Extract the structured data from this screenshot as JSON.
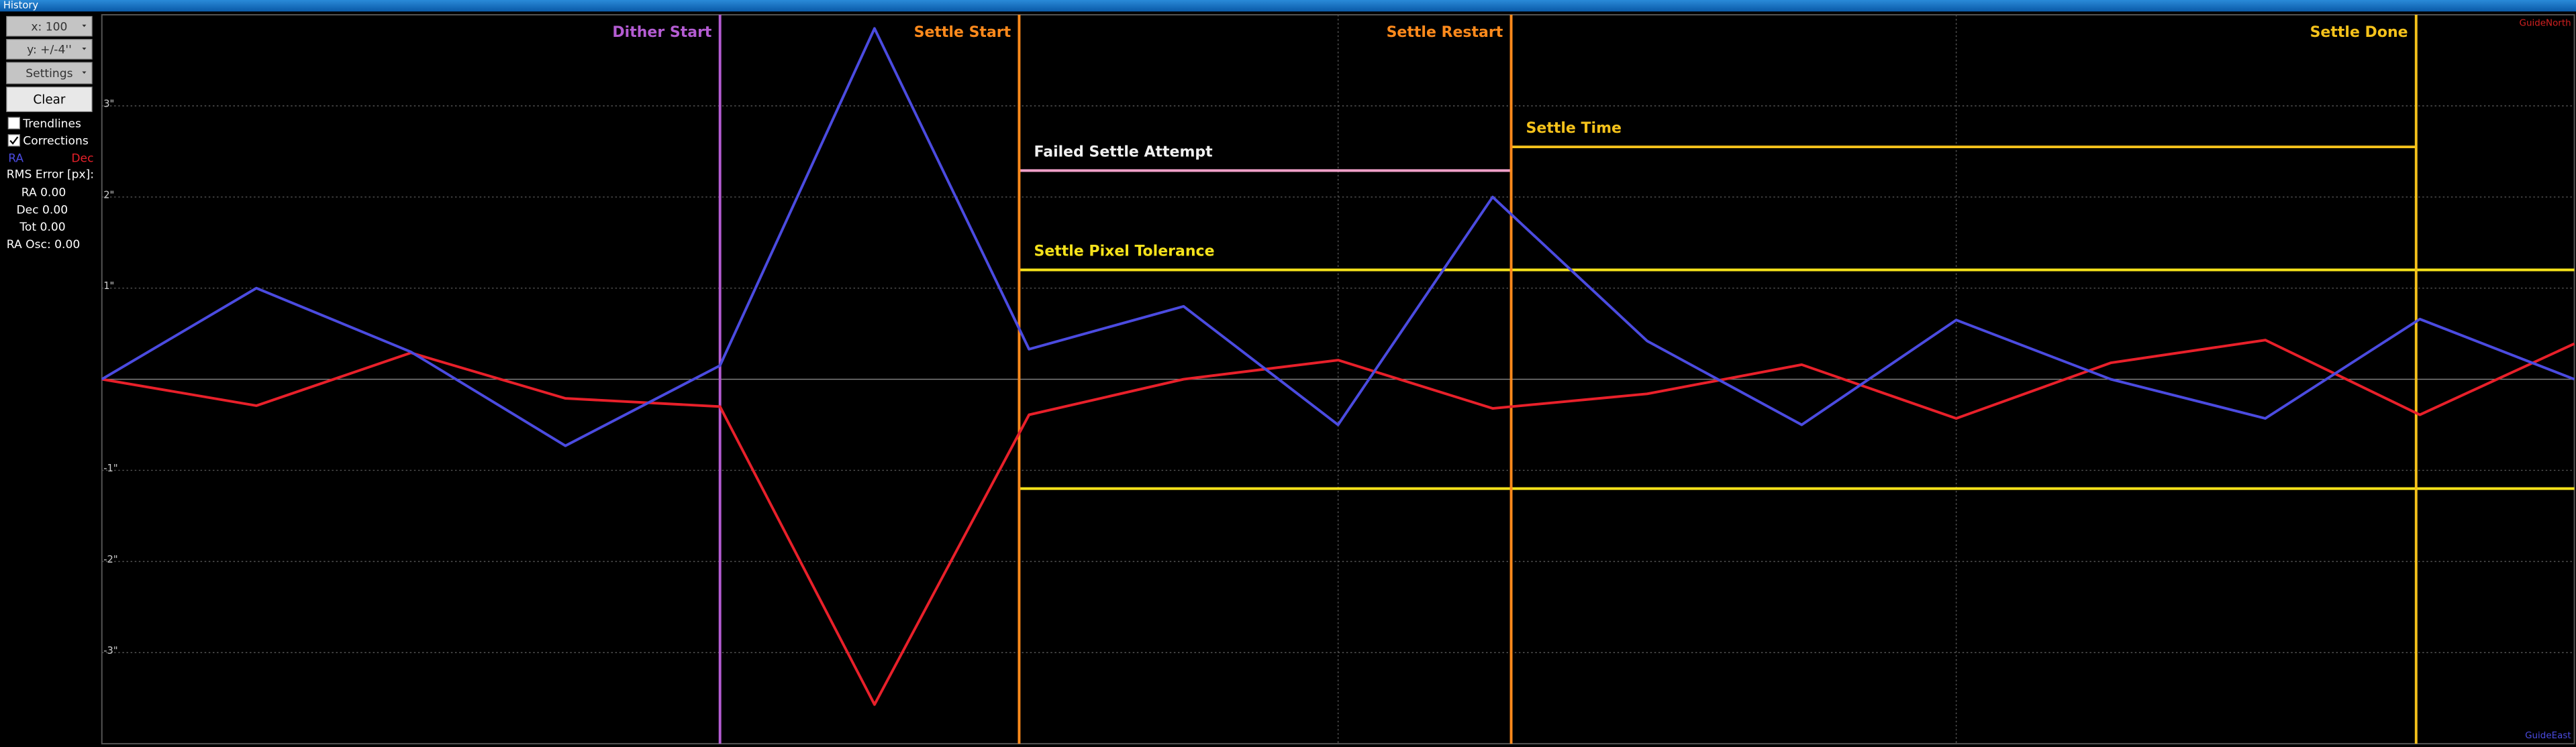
{
  "window_title": "History",
  "controls": {
    "x_scale": "x: 100",
    "y_scale": "y: +/-4''",
    "settings": "Settings",
    "clear": "Clear",
    "trendlines": {
      "label": "Trendlines",
      "checked": false
    },
    "corrections": {
      "label": "Corrections",
      "checked": true
    },
    "ra_legend": "RA",
    "dec_legend": "Dec",
    "rms_title": "RMS Error [px]:",
    "rms_ra": "RA 0.00",
    "rms_dec": "Dec 0.00",
    "rms_tot": "Tot 0.00",
    "ra_osc": "RA Osc: 0.00"
  },
  "chart_data": {
    "type": "line",
    "x": [
      0,
      6.25,
      12.5,
      18.75,
      25,
      31.25,
      37.5,
      43.75,
      50,
      56.25,
      62.5,
      68.75,
      75,
      81.25,
      87.5,
      93.75,
      100
    ],
    "series": [
      {
        "name": "RA",
        "color": "#4b4be0",
        "values": [
          0,
          1.0,
          0.3,
          -0.73,
          0.15,
          3.85,
          0.33,
          0.8,
          -0.5,
          2.0,
          0.42,
          -0.5,
          0.65,
          0,
          -0.43,
          0.66,
          0
        ]
      },
      {
        "name": "Dec",
        "color": "#e8202a",
        "values": [
          0,
          -0.29,
          0.29,
          -0.21,
          -0.3,
          -3.57,
          -0.39,
          0,
          0.21,
          -0.32,
          -0.16,
          0.16,
          -0.43,
          0.18,
          0.43,
          -0.39,
          0.39
        ]
      }
    ],
    "xlim": [
      0,
      100
    ],
    "xticks": [
      25,
      50,
      75
    ],
    "ylim": [
      -4,
      4
    ],
    "yticks": [
      {
        "value": 3,
        "label": "3\""
      },
      {
        "value": 2,
        "label": "2\""
      },
      {
        "value": 1,
        "label": "1\""
      },
      {
        "value": -1,
        "label": "-1\""
      },
      {
        "value": -2,
        "label": "-2\""
      },
      {
        "value": -3,
        "label": "-3\""
      }
    ],
    "grid": true,
    "events": [
      {
        "label": "Dither Start",
        "x": 25,
        "color": "#b45cd2"
      },
      {
        "label": "Settle Start",
        "x": 37.1,
        "color": "#ff8a1c"
      },
      {
        "label": "Settle Restart",
        "x": 57,
        "color": "#ff8a1c"
      },
      {
        "label": "Settle Done",
        "x": 93.6,
        "color": "#f5c21b"
      }
    ],
    "hlines": [
      {
        "label": "Failed Settle Attempt",
        "y": [
          2.29
        ],
        "x": [
          37.1,
          57
        ],
        "color": "#f0a0c8",
        "label_color": "#f0f0f0"
      },
      {
        "label": "Settle Time",
        "y": [
          2.55
        ],
        "x": [
          57,
          93.6
        ],
        "color": "#f5c21b",
        "label_color": "#f5c21b"
      },
      {
        "label": "Settle Pixel Tolerance",
        "y": [
          1.2,
          -1.2
        ],
        "x": [
          37.1,
          100
        ],
        "color": "#f5e21b",
        "label_color": "#f5e21b"
      }
    ],
    "north_label": "GuideNorth",
    "east_label": "GuideEast"
  }
}
